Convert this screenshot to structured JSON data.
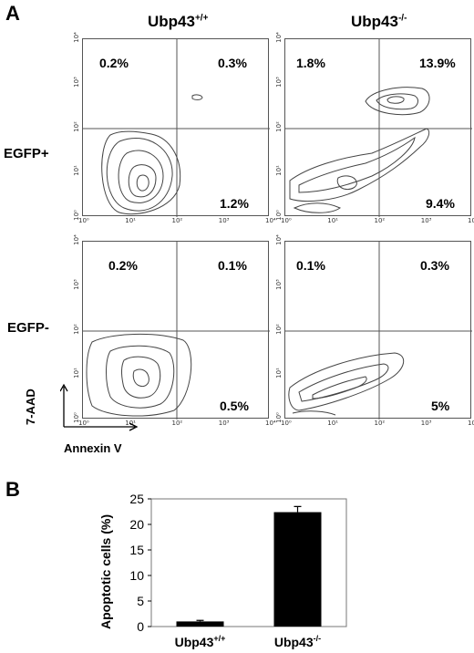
{
  "panel_a": {
    "letter": "A",
    "column_headers": [
      {
        "base": "Ubp43",
        "sup": "+/+"
      },
      {
        "base": "Ubp43",
        "sup": "-/-"
      }
    ],
    "row_headers": [
      "EGFP+",
      "EGFP-"
    ],
    "y_axis_title": "7-AAD",
    "x_axis_title": "Annexin V",
    "tick_labels": [
      "10⁰",
      "10¹",
      "10²",
      "10³",
      "10⁴"
    ],
    "quadrant_percentages": [
      {
        "row": "EGFP+",
        "genotype": "Ubp43+/+",
        "top_left": "0.2%",
        "top_right": "0.3%",
        "bottom_right": "1.2%"
      },
      {
        "row": "EGFP+",
        "genotype": "Ubp43-/-",
        "top_left": "1.8%",
        "top_right": "13.9%",
        "bottom_right": "9.4%"
      },
      {
        "row": "EGFP-",
        "genotype": "Ubp43+/+",
        "top_left": "0.2%",
        "top_right": "0.1%",
        "bottom_right": "0.5%"
      },
      {
        "row": "EGFP-",
        "genotype": "Ubp43-/-",
        "top_left": "0.1%",
        "top_right": "0.3%",
        "bottom_right": "5%"
      }
    ],
    "contour_color": "#444444"
  },
  "panel_b": {
    "letter": "B"
  },
  "chart_data": {
    "type": "bar",
    "categories": [
      "Ubp43+/+",
      "Ubp43-/-"
    ],
    "category_labels": [
      {
        "base": "Ubp43",
        "sup": "+/+"
      },
      {
        "base": "Ubp43",
        "sup": "-/-"
      }
    ],
    "values": [
      1.0,
      22.4
    ],
    "errors": [
      0.2,
      1.1
    ],
    "ylabel": "Apoptotic cells (%)",
    "xlabel": "",
    "ylim": [
      0,
      25
    ],
    "yticks": [
      0,
      5,
      10,
      15,
      20,
      25
    ],
    "bar_color": "#000000",
    "grid": false
  }
}
